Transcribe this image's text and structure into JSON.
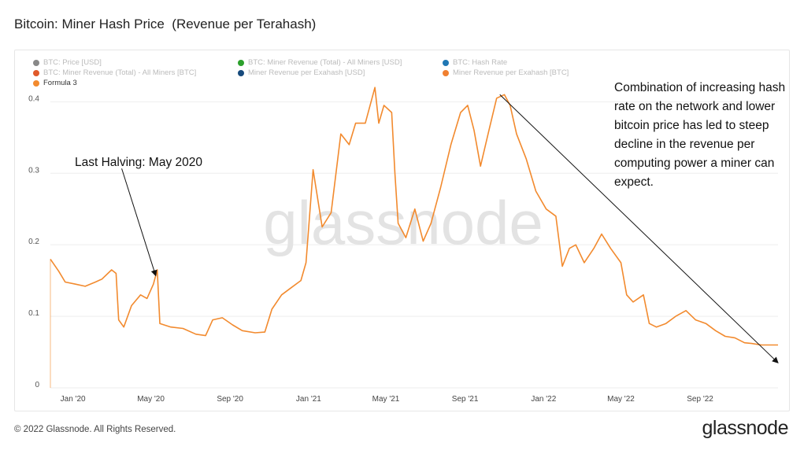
{
  "page": {
    "title": "Bitcoin: Miner Hash Price  (Revenue per Terahash)",
    "watermark": "glassnode",
    "copyright": "© 2022 Glassnode. All Rights Reserved.",
    "brand": "glassnode"
  },
  "legend": [
    {
      "label": "BTC: Price [USD]",
      "color": "#888888",
      "active": false
    },
    {
      "label": "BTC: Miner Revenue (Total) - All Miners [USD]",
      "color": "#2ca02c",
      "active": false
    },
    {
      "label": "BTC: Hash Rate",
      "color": "#1f77b4",
      "active": false
    },
    {
      "label": "BTC: Miner Revenue (Total) - All Miners [BTC]",
      "color": "#e05a2b",
      "active": false
    },
    {
      "label": "Miner Revenue per Exahash [USD]",
      "color": "#174a7c",
      "active": false
    },
    {
      "label": "Miner Revenue per Exahash [BTC]",
      "color": "#f08030",
      "active": false
    },
    {
      "label": "Formula 3",
      "color": "#f28a2e",
      "active": true
    }
  ],
  "annotations": {
    "halving": "Last Halving: May 2020",
    "decline": "Combination of increasing hash rate on the network and lower bitcoin price has led to steep decline in the revenue per computing power a miner can expect."
  },
  "chart_data": {
    "type": "line",
    "x_ticks": [
      "Jan '20",
      "May '20",
      "Sep '20",
      "Jan '21",
      "May '21",
      "Sep '21",
      "Jan '22",
      "May '22",
      "Sep '22"
    ],
    "y_ticks": [
      "0",
      "0.1",
      "0.2",
      "0.3",
      "0.4"
    ],
    "ylim": [
      0,
      0.44
    ],
    "xlim": [
      "2019-11-27",
      "2022-12-31"
    ],
    "series": [
      {
        "name": "Formula 3",
        "color": "#f28a2e",
        "points": [
          [
            "2019-11-27",
            0.18
          ],
          [
            "2019-12-10",
            0.163
          ],
          [
            "2019-12-20",
            0.148
          ],
          [
            "2020-01-05",
            0.145
          ],
          [
            "2020-01-20",
            0.142
          ],
          [
            "2020-02-05",
            0.148
          ],
          [
            "2020-02-15",
            0.152
          ],
          [
            "2020-03-01",
            0.165
          ],
          [
            "2020-03-08",
            0.16
          ],
          [
            "2020-03-12",
            0.095
          ],
          [
            "2020-03-20",
            0.085
          ],
          [
            "2020-04-01",
            0.115
          ],
          [
            "2020-04-15",
            0.13
          ],
          [
            "2020-04-25",
            0.125
          ],
          [
            "2020-05-05",
            0.145
          ],
          [
            "2020-05-11",
            0.165
          ],
          [
            "2020-05-15",
            0.09
          ],
          [
            "2020-06-01",
            0.085
          ],
          [
            "2020-06-20",
            0.083
          ],
          [
            "2020-07-10",
            0.075
          ],
          [
            "2020-07-25",
            0.073
          ],
          [
            "2020-08-05",
            0.095
          ],
          [
            "2020-08-20",
            0.098
          ],
          [
            "2020-09-05",
            0.088
          ],
          [
            "2020-09-20",
            0.08
          ],
          [
            "2020-10-10",
            0.077
          ],
          [
            "2020-10-25",
            0.078
          ],
          [
            "2020-11-05",
            0.11
          ],
          [
            "2020-11-20",
            0.13
          ],
          [
            "2020-12-05",
            0.14
          ],
          [
            "2020-12-20",
            0.15
          ],
          [
            "2020-12-28",
            0.175
          ],
          [
            "2021-01-08",
            0.305
          ],
          [
            "2021-01-22",
            0.225
          ],
          [
            "2021-02-05",
            0.245
          ],
          [
            "2021-02-20",
            0.355
          ],
          [
            "2021-03-05",
            0.34
          ],
          [
            "2021-03-15",
            0.37
          ],
          [
            "2021-03-30",
            0.37
          ],
          [
            "2021-04-14",
            0.42
          ],
          [
            "2021-04-20",
            0.37
          ],
          [
            "2021-04-28",
            0.395
          ],
          [
            "2021-05-10",
            0.385
          ],
          [
            "2021-05-15",
            0.3
          ],
          [
            "2021-05-20",
            0.23
          ],
          [
            "2021-06-01",
            0.21
          ],
          [
            "2021-06-15",
            0.25
          ],
          [
            "2021-06-28",
            0.205
          ],
          [
            "2021-07-10",
            0.23
          ],
          [
            "2021-07-25",
            0.28
          ],
          [
            "2021-08-10",
            0.34
          ],
          [
            "2021-08-25",
            0.385
          ],
          [
            "2021-09-05",
            0.395
          ],
          [
            "2021-09-15",
            0.36
          ],
          [
            "2021-09-25",
            0.31
          ],
          [
            "2021-10-08",
            0.36
          ],
          [
            "2021-10-20",
            0.405
          ],
          [
            "2021-11-01",
            0.41
          ],
          [
            "2021-11-10",
            0.395
          ],
          [
            "2021-11-20",
            0.355
          ],
          [
            "2021-12-05",
            0.32
          ],
          [
            "2021-12-20",
            0.275
          ],
          [
            "2022-01-05",
            0.25
          ],
          [
            "2022-01-20",
            0.24
          ],
          [
            "2022-01-30",
            0.17
          ],
          [
            "2022-02-10",
            0.195
          ],
          [
            "2022-02-20",
            0.2
          ],
          [
            "2022-03-05",
            0.175
          ],
          [
            "2022-03-20",
            0.195
          ],
          [
            "2022-04-01",
            0.215
          ],
          [
            "2022-04-15",
            0.195
          ],
          [
            "2022-05-01",
            0.175
          ],
          [
            "2022-05-10",
            0.13
          ],
          [
            "2022-05-20",
            0.12
          ],
          [
            "2022-06-05",
            0.13
          ],
          [
            "2022-06-14",
            0.09
          ],
          [
            "2022-06-25",
            0.085
          ],
          [
            "2022-07-10",
            0.09
          ],
          [
            "2022-07-25",
            0.1
          ],
          [
            "2022-08-10",
            0.108
          ],
          [
            "2022-08-25",
            0.095
          ],
          [
            "2022-09-10",
            0.09
          ],
          [
            "2022-09-25",
            0.08
          ],
          [
            "2022-10-10",
            0.072
          ],
          [
            "2022-10-25",
            0.07
          ],
          [
            "2022-11-09",
            0.063
          ],
          [
            "2022-11-20",
            0.062
          ],
          [
            "2022-12-05",
            0.06
          ],
          [
            "2022-12-20",
            0.06
          ],
          [
            "2022-12-31",
            0.06
          ]
        ]
      }
    ],
    "trend_arrow": {
      "from": [
        "2021-10-25",
        0.41
      ],
      "to": [
        "2022-12-31",
        0.035
      ]
    },
    "halving_arrow": {
      "from": [
        "2020-04-20",
        0.3
      ],
      "to": [
        "2020-05-11",
        0.17
      ]
    },
    "legend_position": "top",
    "grid": {
      "horizontal": true,
      "vertical": false
    }
  }
}
